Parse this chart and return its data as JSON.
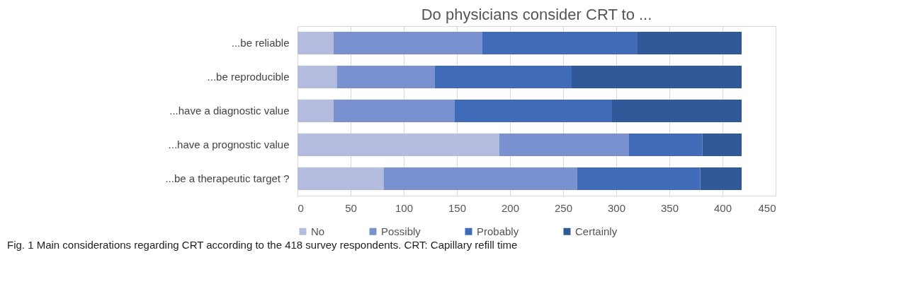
{
  "chart_data": {
    "type": "bar",
    "orientation": "horizontal",
    "stacked": true,
    "title": "Do physicians consider CRT to ...",
    "categories": [
      "...be reliable",
      "...be reproducible",
      "...have a diagnostic value",
      "...have a prognostic value",
      "...be a therapeutic target ?"
    ],
    "series": [
      {
        "name": "No",
        "color": "#b4bde0",
        "values": [
          34,
          37,
          34,
          190,
          81
        ]
      },
      {
        "name": "Possibly",
        "color": "#7a91cf",
        "values": [
          140,
          92,
          114,
          122,
          182
        ]
      },
      {
        "name": "Probably",
        "color": "#3f6bb8",
        "values": [
          146,
          129,
          148,
          69,
          116
        ]
      },
      {
        "name": "Certainly",
        "color": "#315898",
        "values": [
          98,
          160,
          122,
          37,
          39
        ]
      }
    ],
    "xlim": [
      0,
      450
    ],
    "xticks": [
      0,
      50,
      100,
      150,
      200,
      250,
      300,
      350,
      400,
      450
    ],
    "grid": "x",
    "legend": "bottom",
    "annotations": [
      "Fig. 1  Main considerations regarding CRT according to the 418 survey respondents. CRT: Capillary refill time"
    ]
  }
}
